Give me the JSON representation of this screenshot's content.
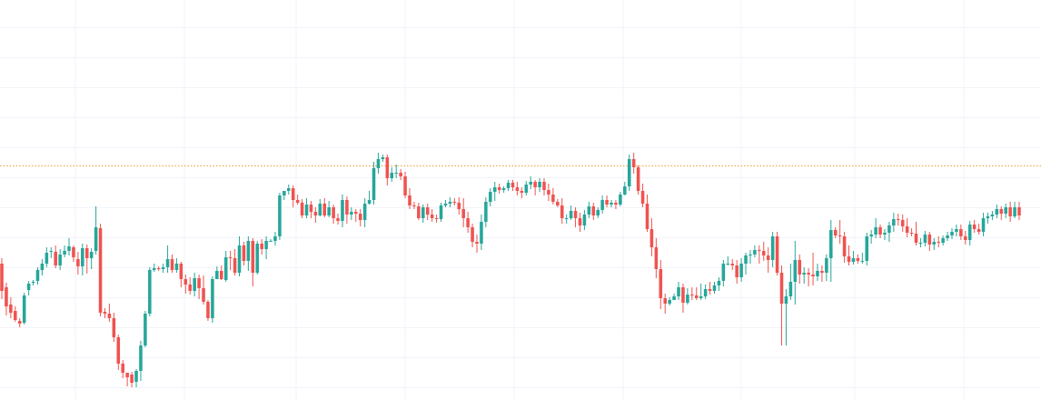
{
  "chart_data": {
    "type": "candlestick",
    "title": "",
    "xlabel": "",
    "ylabel": "",
    "grid": true,
    "legend": "none",
    "ylim": [
      0,
      440
    ],
    "reference_line": {
      "value": 258,
      "color": "#f0a030",
      "style": "dotted"
    },
    "colors": {
      "up": "#26a69a",
      "down": "#ef5350",
      "grid": "#f0f3fa",
      "background": "#ffffff"
    },
    "candles": [
      [
        150,
        120,
        156,
        111
      ],
      [
        124,
        103,
        129,
        93
      ],
      [
        105,
        96,
        113,
        90
      ],
      [
        98,
        88,
        103,
        86
      ],
      [
        87,
        84,
        90,
        80
      ],
      [
        85,
        115,
        118,
        83
      ],
      [
        121,
        128,
        131,
        115
      ],
      [
        129,
        130,
        132,
        126
      ],
      [
        131,
        143,
        146,
        127
      ],
      [
        143,
        150,
        155,
        137
      ],
      [
        150,
        162,
        168,
        146
      ],
      [
        163,
        164,
        168,
        156
      ],
      [
        163,
        148,
        170,
        145
      ],
      [
        148,
        160,
        166,
        143
      ],
      [
        160,
        164,
        170,
        157
      ],
      [
        164,
        169,
        178,
        159
      ],
      [
        168,
        157,
        170,
        152
      ],
      [
        155,
        147,
        163,
        138
      ],
      [
        147,
        167,
        172,
        137
      ],
      [
        167,
        156,
        171,
        139
      ],
      [
        156,
        163,
        167,
        144
      ],
      [
        164,
        190,
        213,
        160
      ],
      [
        189,
        96,
        194,
        92
      ],
      [
        97,
        95,
        101,
        90
      ],
      [
        95,
        90,
        106,
        86
      ],
      [
        90,
        69,
        96,
        64
      ],
      [
        69,
        40,
        72,
        33
      ],
      [
        40,
        30,
        44,
        24
      ],
      [
        30,
        25,
        30,
        15
      ],
      [
        28,
        19,
        31,
        14
      ],
      [
        20,
        32,
        34,
        14
      ],
      [
        32,
        60,
        65,
        21
      ],
      [
        60,
        95,
        98,
        58
      ],
      [
        95,
        143,
        146,
        92
      ],
      [
        143,
        145,
        150,
        141
      ],
      [
        145,
        144,
        147,
        142
      ],
      [
        144,
        146,
        150,
        140
      ],
      [
        146,
        155,
        170,
        140
      ],
      [
        155,
        143,
        160,
        140
      ],
      [
        143,
        150,
        156,
        140
      ],
      [
        150,
        133,
        152,
        124
      ],
      [
        133,
        127,
        138,
        117
      ],
      [
        127,
        120,
        135,
        116
      ],
      [
        120,
        134,
        140,
        114
      ],
      [
        134,
        123,
        138,
        111
      ],
      [
        123,
        108,
        137,
        105
      ],
      [
        108,
        90,
        110,
        87
      ],
      [
        90,
        133,
        136,
        85
      ],
      [
        133,
        142,
        147,
        133
      ],
      [
        142,
        133,
        148,
        132
      ],
      [
        132,
        157,
        164,
        130
      ],
      [
        157,
        156,
        164,
        143
      ],
      [
        156,
        140,
        166,
        137
      ],
      [
        140,
        170,
        180,
        136
      ],
      [
        170,
        153,
        174,
        148
      ],
      [
        153,
        175,
        180,
        142
      ],
      [
        175,
        140,
        178,
        125
      ],
      [
        140,
        172,
        175,
        138
      ],
      [
        172,
        166,
        177,
        160
      ],
      [
        166,
        175,
        180,
        155
      ],
      [
        175,
        175,
        177,
        175
      ],
      [
        175,
        180,
        185,
        170
      ],
      [
        180,
        225,
        228,
        176
      ],
      [
        225,
        230,
        230,
        220
      ],
      [
        230,
        233,
        237,
        226
      ],
      [
        233,
        220,
        236,
        212
      ],
      [
        220,
        217,
        226,
        215
      ],
      [
        217,
        203,
        221,
        200
      ],
      [
        203,
        215,
        222,
        200
      ],
      [
        215,
        207,
        219,
        200
      ],
      [
        207,
        203,
        212,
        195
      ],
      [
        203,
        216,
        221,
        202
      ],
      [
        216,
        203,
        222,
        201
      ],
      [
        203,
        212,
        219,
        201
      ],
      [
        212,
        200,
        215,
        194
      ],
      [
        200,
        197,
        205,
        193
      ],
      [
        197,
        220,
        226,
        190
      ],
      [
        220,
        204,
        224,
        194
      ],
      [
        204,
        207,
        212,
        198
      ],
      [
        207,
        205,
        210,
        196
      ],
      [
        205,
        198,
        210,
        191
      ],
      [
        198,
        216,
        222,
        190
      ],
      [
        216,
        220,
        230,
        215
      ],
      [
        220,
        255,
        262,
        215
      ],
      [
        255,
        265,
        272,
        249
      ],
      [
        265,
        267,
        270,
        262
      ],
      [
        267,
        244,
        270,
        236
      ],
      [
        244,
        250,
        256,
        240
      ],
      [
        250,
        250,
        259,
        244
      ],
      [
        250,
        246,
        254,
        242
      ],
      [
        246,
        225,
        251,
        222
      ],
      [
        225,
        214,
        233,
        210
      ],
      [
        214,
        213,
        218,
        210
      ],
      [
        213,
        200,
        217,
        198
      ],
      [
        200,
        212,
        215,
        195
      ],
      [
        212,
        204,
        216,
        198
      ],
      [
        204,
        200,
        210,
        196
      ],
      [
        200,
        199,
        204,
        195
      ],
      [
        199,
        214,
        217,
        196
      ],
      [
        214,
        216,
        220,
        212
      ],
      [
        216,
        218,
        223,
        212
      ],
      [
        218,
        217,
        222,
        214
      ],
      [
        217,
        210,
        223,
        204
      ],
      [
        210,
        200,
        222,
        190
      ],
      [
        200,
        190,
        207,
        184
      ],
      [
        190,
        174,
        194,
        168
      ],
      [
        174,
        172,
        182,
        162
      ],
      [
        172,
        196,
        204,
        165
      ],
      [
        196,
        218,
        223,
        190
      ],
      [
        218,
        229,
        233,
        213
      ],
      [
        229,
        234,
        240,
        219
      ],
      [
        234,
        231,
        238,
        227
      ],
      [
        231,
        233,
        235,
        228
      ],
      [
        233,
        239,
        242,
        230
      ],
      [
        239,
        234,
        242,
        230
      ],
      [
        234,
        230,
        240,
        225
      ],
      [
        230,
        228,
        234,
        222
      ],
      [
        228,
        237,
        241,
        225
      ],
      [
        237,
        240,
        246,
        232
      ],
      [
        240,
        234,
        242,
        225
      ],
      [
        234,
        240,
        244,
        229
      ],
      [
        240,
        231,
        244,
        225
      ],
      [
        231,
        226,
        238,
        219
      ],
      [
        226,
        218,
        233,
        215
      ],
      [
        218,
        214,
        221,
        212
      ],
      [
        214,
        200,
        222,
        194
      ],
      [
        200,
        200,
        204,
        194
      ],
      [
        200,
        208,
        214,
        198
      ],
      [
        208,
        200,
        212,
        190
      ],
      [
        200,
        192,
        206,
        185
      ],
      [
        192,
        204,
        209,
        187
      ],
      [
        204,
        213,
        218,
        200
      ],
      [
        213,
        203,
        217,
        198
      ],
      [
        203,
        209,
        212,
        200
      ],
      [
        209,
        220,
        225,
        205
      ],
      [
        220,
        215,
        225,
        212
      ],
      [
        215,
        217,
        220,
        212
      ],
      [
        217,
        215,
        220,
        210
      ],
      [
        215,
        226,
        229,
        213
      ],
      [
        226,
        235,
        240,
        225
      ],
      [
        235,
        265,
        270,
        230
      ],
      [
        265,
        256,
        272,
        249
      ],
      [
        256,
        230,
        258,
        226
      ],
      [
        230,
        216,
        238,
        212
      ],
      [
        216,
        188,
        226,
        185
      ],
      [
        188,
        168,
        200,
        158
      ],
      [
        168,
        144,
        178,
        134
      ],
      [
        144,
        112,
        154,
        100
      ],
      [
        112,
        106,
        117,
        95
      ],
      [
        106,
        110,
        113,
        104
      ],
      [
        110,
        114,
        117,
        110
      ],
      [
        114,
        124,
        130,
        110
      ],
      [
        124,
        107,
        128,
        96
      ],
      [
        107,
        116,
        123,
        105
      ],
      [
        116,
        115,
        124,
        110
      ],
      [
        115,
        112,
        124,
        110
      ],
      [
        112,
        114,
        128,
        110
      ],
      [
        114,
        122,
        127,
        111
      ],
      [
        122,
        120,
        130,
        116
      ],
      [
        120,
        126,
        130,
        117
      ],
      [
        126,
        131,
        135,
        120
      ],
      [
        131,
        150,
        154,
        125
      ],
      [
        150,
        150,
        158,
        148
      ],
      [
        150,
        148,
        155,
        143
      ],
      [
        148,
        135,
        154,
        128
      ],
      [
        135,
        150,
        156,
        130
      ],
      [
        150,
        159,
        162,
        138
      ],
      [
        159,
        160,
        165,
        150
      ],
      [
        160,
        165,
        170,
        157
      ],
      [
        165,
        164,
        170,
        150
      ],
      [
        164,
        159,
        174,
        153
      ],
      [
        159,
        154,
        168,
        140
      ],
      [
        154,
        180,
        185,
        146
      ],
      [
        180,
        140,
        185,
        137
      ],
      [
        140,
        106,
        148,
        60
      ],
      [
        106,
        114,
        122,
        60
      ],
      [
        114,
        130,
        150,
        110
      ],
      [
        130,
        154,
        175,
        105
      ],
      [
        154,
        138,
        160,
        128
      ],
      [
        138,
        140,
        146,
        128
      ],
      [
        140,
        138,
        145,
        125
      ],
      [
        138,
        136,
        162,
        126
      ],
      [
        136,
        142,
        150,
        131
      ],
      [
        142,
        140,
        148,
        130
      ],
      [
        140,
        156,
        160,
        131
      ],
      [
        156,
        187,
        198,
        130
      ],
      [
        187,
        181,
        190,
        178
      ],
      [
        181,
        180,
        198,
        172
      ],
      [
        180,
        158,
        185,
        151
      ],
      [
        158,
        152,
        170,
        148
      ],
      [
        152,
        156,
        164,
        149
      ],
      [
        156,
        153,
        160,
        150
      ],
      [
        153,
        153,
        162,
        150
      ],
      [
        153,
        180,
        184,
        148
      ],
      [
        180,
        182,
        187,
        172
      ],
      [
        182,
        190,
        200,
        178
      ],
      [
        190,
        182,
        193,
        178
      ],
      [
        182,
        184,
        188,
        176
      ],
      [
        184,
        192,
        196,
        174
      ],
      [
        192,
        199,
        206,
        185
      ],
      [
        199,
        198,
        205,
        192
      ],
      [
        198,
        191,
        204,
        185
      ],
      [
        191,
        184,
        200,
        179
      ],
      [
        184,
        183,
        189,
        180
      ],
      [
        183,
        173,
        196,
        170
      ],
      [
        173,
        173,
        178,
        168
      ],
      [
        173,
        182,
        186,
        169
      ],
      [
        182,
        171,
        185,
        164
      ],
      [
        171,
        174,
        178,
        165
      ],
      [
        174,
        173,
        180,
        168
      ],
      [
        173,
        178,
        181,
        170
      ],
      [
        178,
        181,
        185,
        175
      ],
      [
        181,
        185,
        189,
        177
      ],
      [
        185,
        188,
        193,
        180
      ],
      [
        188,
        180,
        193,
        176
      ],
      [
        180,
        176,
        186,
        171
      ],
      [
        176,
        193,
        197,
        170
      ],
      [
        193,
        188,
        198,
        184
      ],
      [
        188,
        185,
        194,
        182
      ],
      [
        185,
        200,
        206,
        180
      ],
      [
        200,
        202,
        206,
        194
      ],
      [
        202,
        204,
        208,
        198
      ],
      [
        204,
        210,
        215,
        200
      ],
      [
        210,
        205,
        213,
        198
      ],
      [
        205,
        212,
        216,
        200
      ],
      [
        212,
        202,
        218,
        196
      ],
      [
        202,
        212,
        218,
        200
      ],
      [
        212,
        203,
        218,
        198
      ]
    ]
  }
}
